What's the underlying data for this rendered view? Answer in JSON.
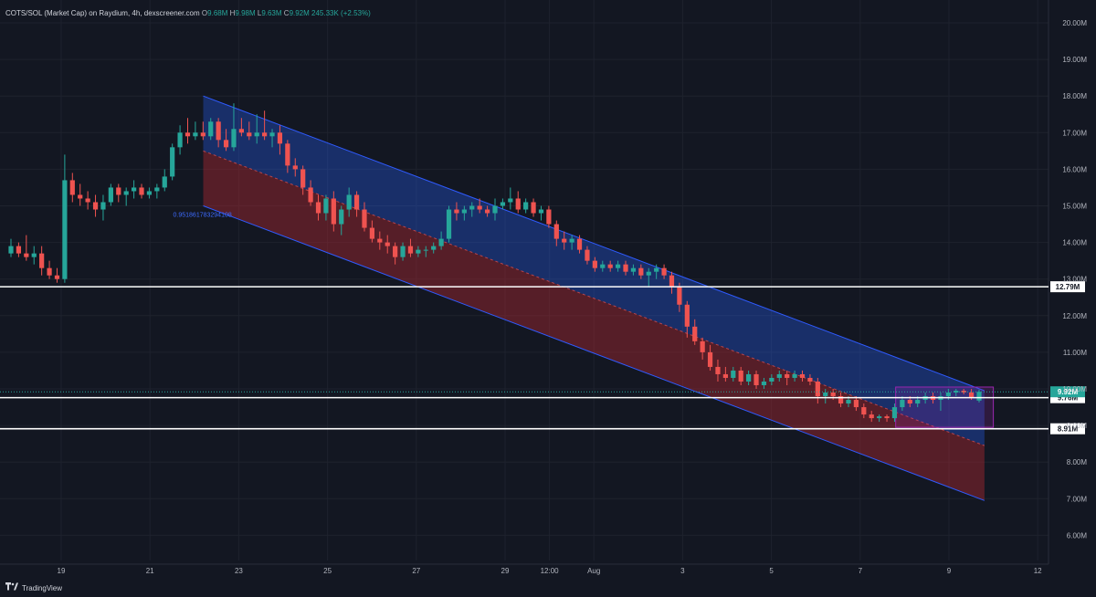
{
  "header": {
    "symbol": "COTS/SOL (Market Cap) on Raydium, 4h, dexscreener.com",
    "o_label": "O",
    "o_value": "9.68M",
    "h_label": "H",
    "h_value": "9.98M",
    "l_label": "L",
    "l_value": "9.63M",
    "c_label": "C",
    "c_value": "9.92M",
    "change": "245.33K (+2.53%)"
  },
  "footer": {
    "brand": "TradingView",
    "logo_icon": "tradingview-logo-icon"
  },
  "colors": {
    "background": "#131722",
    "up": "#26a69a",
    "down": "#ef5350",
    "grid": "#1e222d",
    "channel_blue": "#2962ff",
    "channel_red": "#b22833",
    "level_line": "#ffffff",
    "box": "#9c27b0",
    "text": "#b2b5be"
  },
  "chart_data": {
    "type": "candlestick",
    "title": "COTS/SOL (Market Cap) on Raydium, 4h, dexscreener.com",
    "grid": true,
    "y_axis": {
      "ticks": [
        "20.00M",
        "19.00M",
        "18.00M",
        "17.00M",
        "16.00M",
        "15.00M",
        "14.00M",
        "13.00M",
        "12.00M",
        "11.00M",
        "10.00M",
        "9.00M",
        "8.00M",
        "7.00M",
        "6.00M"
      ],
      "tick_values": [
        20,
        19,
        18,
        17,
        16,
        15,
        14,
        13,
        12,
        11,
        10,
        9,
        8,
        7,
        6
      ],
      "range": [
        5.6,
        20.6
      ],
      "unit": "M"
    },
    "x_axis": {
      "labels": [
        "19",
        "21",
        "23",
        "25",
        "27",
        "29",
        "12:00",
        "Aug",
        "3",
        "5",
        "7",
        "9",
        "12"
      ],
      "label_days": [
        0,
        2,
        4,
        6,
        8,
        10,
        11,
        12,
        14,
        16,
        18,
        20,
        22
      ]
    },
    "horizontal_levels": [
      {
        "value": 12.79,
        "label": "12.79M"
      },
      {
        "value": 9.76,
        "label": "9.76M"
      },
      {
        "value": 8.91,
        "label": "8.91M"
      }
    ],
    "price_markers": [
      {
        "value": 9.92,
        "label": "9.92M",
        "color": "#26a69a"
      }
    ],
    "regression_channel": {
      "start_day": 3.2,
      "end_day": 20.8,
      "upper": [
        18.0,
        9.95
      ],
      "middle": [
        16.5,
        8.45
      ],
      "lower": [
        15.0,
        6.95
      ],
      "label": "0.951861783294108"
    },
    "range_box": {
      "start_day": 18.8,
      "end_day": 21.0,
      "high": 10.05,
      "low": 8.95
    },
    "ohlc": [
      [
        13.7,
        14.1,
        13.6,
        13.9
      ],
      [
        13.9,
        14.0,
        13.6,
        13.7
      ],
      [
        13.7,
        14.2,
        13.5,
        13.6
      ],
      [
        13.6,
        13.9,
        13.4,
        13.7
      ],
      [
        13.7,
        13.9,
        13.1,
        13.3
      ],
      [
        13.3,
        13.5,
        13.0,
        13.1
      ],
      [
        13.1,
        13.3,
        12.9,
        13.0
      ],
      [
        13.0,
        16.4,
        12.9,
        15.7
      ],
      [
        15.7,
        15.9,
        15.1,
        15.3
      ],
      [
        15.3,
        15.6,
        15.0,
        15.2
      ],
      [
        15.2,
        15.4,
        14.9,
        15.1
      ],
      [
        15.1,
        15.3,
        14.7,
        14.9
      ],
      [
        14.9,
        15.3,
        14.6,
        15.1
      ],
      [
        15.1,
        15.6,
        15.0,
        15.5
      ],
      [
        15.5,
        15.6,
        15.1,
        15.3
      ],
      [
        15.3,
        15.5,
        15.0,
        15.4
      ],
      [
        15.4,
        15.7,
        15.2,
        15.5
      ],
      [
        15.5,
        15.6,
        15.2,
        15.3
      ],
      [
        15.3,
        15.5,
        15.2,
        15.4
      ],
      [
        15.4,
        15.6,
        15.2,
        15.5
      ],
      [
        15.5,
        16.0,
        15.4,
        15.8
      ],
      [
        15.8,
        16.7,
        15.7,
        16.6
      ],
      [
        16.6,
        17.2,
        16.4,
        17.0
      ],
      [
        17.0,
        17.4,
        16.7,
        16.9
      ],
      [
        16.9,
        17.3,
        16.8,
        17.0
      ],
      [
        17.0,
        17.3,
        16.8,
        16.9
      ],
      [
        16.9,
        17.4,
        16.8,
        17.3
      ],
      [
        17.3,
        17.4,
        16.6,
        16.8
      ],
      [
        16.8,
        17.1,
        16.5,
        16.6
      ],
      [
        16.6,
        17.8,
        16.5,
        17.1
      ],
      [
        17.1,
        17.4,
        16.9,
        17.0
      ],
      [
        17.0,
        17.3,
        16.8,
        16.9
      ],
      [
        16.9,
        17.5,
        16.7,
        17.0
      ],
      [
        17.0,
        17.6,
        16.8,
        16.9
      ],
      [
        16.9,
        17.1,
        16.6,
        17.0
      ],
      [
        17.0,
        17.2,
        16.4,
        16.7
      ],
      [
        16.7,
        16.8,
        15.9,
        16.1
      ],
      [
        16.1,
        16.3,
        15.8,
        16.0
      ],
      [
        16.0,
        16.1,
        15.3,
        15.5
      ],
      [
        15.5,
        15.7,
        15.0,
        15.1
      ],
      [
        15.1,
        15.3,
        14.6,
        14.8
      ],
      [
        14.8,
        15.3,
        14.6,
        15.2
      ],
      [
        15.2,
        15.4,
        14.3,
        14.5
      ],
      [
        14.5,
        15.0,
        14.2,
        14.9
      ],
      [
        14.9,
        15.5,
        14.7,
        15.3
      ],
      [
        15.3,
        15.4,
        14.7,
        14.9
      ],
      [
        14.9,
        15.1,
        14.3,
        14.4
      ],
      [
        14.4,
        14.6,
        14.0,
        14.1
      ],
      [
        14.1,
        14.3,
        13.8,
        14.0
      ],
      [
        14.0,
        14.2,
        13.7,
        13.9
      ],
      [
        13.9,
        14.0,
        13.4,
        13.6
      ],
      [
        13.6,
        14.0,
        13.5,
        13.9
      ],
      [
        13.9,
        14.1,
        13.6,
        13.7
      ],
      [
        13.7,
        13.9,
        13.6,
        13.8
      ],
      [
        13.8,
        13.9,
        13.6,
        13.8
      ],
      [
        13.8,
        14.0,
        13.7,
        13.9
      ],
      [
        13.9,
        14.3,
        13.8,
        14.1
      ],
      [
        14.1,
        15.0,
        14.0,
        14.9
      ],
      [
        14.9,
        15.1,
        14.6,
        14.8
      ],
      [
        14.8,
        15.0,
        14.6,
        14.9
      ],
      [
        14.9,
        15.1,
        14.7,
        15.0
      ],
      [
        15.0,
        15.2,
        14.8,
        14.9
      ],
      [
        14.9,
        15.0,
        14.7,
        14.8
      ],
      [
        14.8,
        15.2,
        14.6,
        15.0
      ],
      [
        15.0,
        15.2,
        14.9,
        15.1
      ],
      [
        15.1,
        15.5,
        14.9,
        15.2
      ],
      [
        15.2,
        15.4,
        14.8,
        14.9
      ],
      [
        14.9,
        15.2,
        14.8,
        15.1
      ],
      [
        15.1,
        15.2,
        14.7,
        14.8
      ],
      [
        14.8,
        15.0,
        14.6,
        14.9
      ],
      [
        14.9,
        15.0,
        14.4,
        14.5
      ],
      [
        14.5,
        14.6,
        13.9,
        14.1
      ],
      [
        14.1,
        14.3,
        13.8,
        14.0
      ],
      [
        14.0,
        14.2,
        13.8,
        14.1
      ],
      [
        14.1,
        14.2,
        13.7,
        13.8
      ],
      [
        13.8,
        13.9,
        13.4,
        13.5
      ],
      [
        13.5,
        13.6,
        13.2,
        13.3
      ],
      [
        13.3,
        13.5,
        13.2,
        13.4
      ],
      [
        13.4,
        13.5,
        13.2,
        13.3
      ],
      [
        13.3,
        13.5,
        13.2,
        13.4
      ],
      [
        13.4,
        13.5,
        13.1,
        13.2
      ],
      [
        13.2,
        13.4,
        13.1,
        13.3
      ],
      [
        13.3,
        13.4,
        13.0,
        13.1
      ],
      [
        13.1,
        13.3,
        12.8,
        13.2
      ],
      [
        13.2,
        13.4,
        13.0,
        13.3
      ],
      [
        13.3,
        13.4,
        13.0,
        13.1
      ],
      [
        13.1,
        13.2,
        12.6,
        12.8
      ],
      [
        12.8,
        12.9,
        12.1,
        12.3
      ],
      [
        12.3,
        12.4,
        11.4,
        11.7
      ],
      [
        11.7,
        11.9,
        11.2,
        11.3
      ],
      [
        11.3,
        11.4,
        10.8,
        11.0
      ],
      [
        11.0,
        11.2,
        10.5,
        10.6
      ],
      [
        10.6,
        10.8,
        10.2,
        10.4
      ],
      [
        10.4,
        10.6,
        10.2,
        10.3
      ],
      [
        10.3,
        10.6,
        10.2,
        10.5
      ],
      [
        10.5,
        10.6,
        10.1,
        10.2
      ],
      [
        10.2,
        10.5,
        10.1,
        10.4
      ],
      [
        10.4,
        10.5,
        10.0,
        10.1
      ],
      [
        10.1,
        10.3,
        10.0,
        10.2
      ],
      [
        10.2,
        10.4,
        10.1,
        10.3
      ],
      [
        10.3,
        10.5,
        10.2,
        10.4
      ],
      [
        10.4,
        10.5,
        10.1,
        10.3
      ],
      [
        10.3,
        10.5,
        10.2,
        10.4
      ],
      [
        10.4,
        10.5,
        10.2,
        10.3
      ],
      [
        10.3,
        10.4,
        10.1,
        10.2
      ],
      [
        10.2,
        10.3,
        9.6,
        9.8
      ],
      [
        9.8,
        10.0,
        9.6,
        9.9
      ],
      [
        9.9,
        10.0,
        9.7,
        9.8
      ],
      [
        9.8,
        9.9,
        9.5,
        9.6
      ],
      [
        9.6,
        9.8,
        9.5,
        9.7
      ],
      [
        9.7,
        9.8,
        9.4,
        9.5
      ],
      [
        9.5,
        9.6,
        9.2,
        9.3
      ],
      [
        9.3,
        9.4,
        9.1,
        9.2
      ],
      [
        9.2,
        9.3,
        9.1,
        9.25
      ],
      [
        9.25,
        9.3,
        9.1,
        9.2
      ],
      [
        9.2,
        9.6,
        9.1,
        9.5
      ],
      [
        9.5,
        9.8,
        9.4,
        9.7
      ],
      [
        9.7,
        9.8,
        9.5,
        9.6
      ],
      [
        9.6,
        9.8,
        9.5,
        9.7
      ],
      [
        9.7,
        9.9,
        9.6,
        9.8
      ],
      [
        9.8,
        9.9,
        9.6,
        9.7
      ],
      [
        9.7,
        9.9,
        9.4,
        9.8
      ],
      [
        9.8,
        10.0,
        9.7,
        9.9
      ],
      [
        9.9,
        10.0,
        9.8,
        9.95
      ],
      [
        9.95,
        10.0,
        9.85,
        9.9
      ],
      [
        9.9,
        10.0,
        9.7,
        9.75
      ],
      [
        9.68,
        9.98,
        9.63,
        9.92
      ]
    ]
  }
}
